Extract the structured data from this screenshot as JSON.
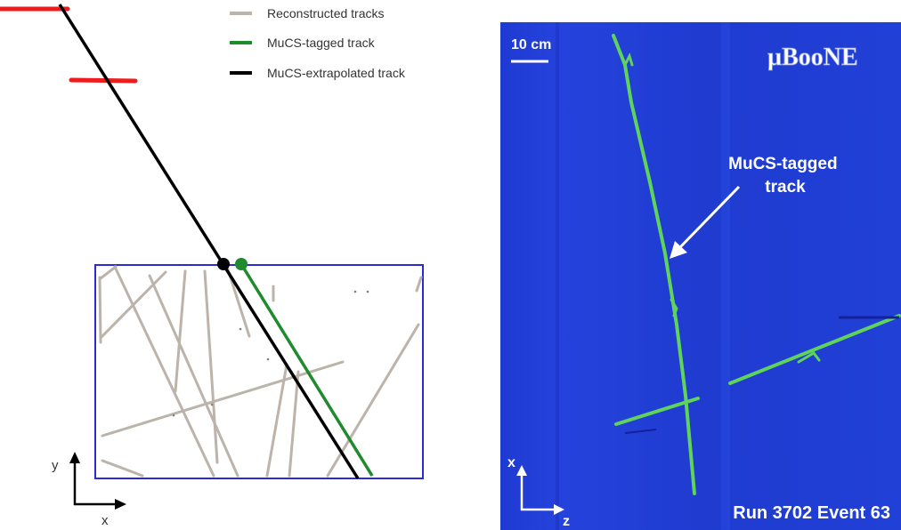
{
  "legend": {
    "items": [
      {
        "label": "Reconstructed tracks",
        "color": "#bcb3aa"
      },
      {
        "label": "MuCS-tagged track",
        "color": "#1f8a2e"
      },
      {
        "label": "MuCS-extrapolated track",
        "color": "#000000"
      }
    ]
  },
  "left_axes": {
    "y_label": "y",
    "x_label": "x"
  },
  "colors": {
    "detector_box": "#2b2bd6",
    "mucs_planes": "#ee1c1c",
    "event_background": "#1f3cd6",
    "tagged_track_display": "#5fd35a",
    "annotation": "#ffffff"
  },
  "event_display": {
    "scale_label": "10 cm",
    "experiment_logo": "µBooNE",
    "annotation": "MuCS-tagged\ntrack",
    "axis_up": "x",
    "axis_right": "z",
    "run_event": "Run 3702 Event 63"
  }
}
